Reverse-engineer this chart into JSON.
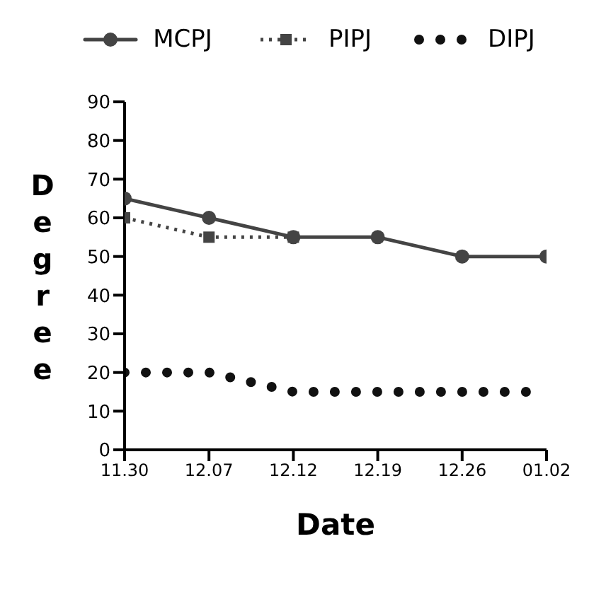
{
  "chart_data": {
    "type": "line",
    "categories": [
      "11.30",
      "12.07",
      "12.12",
      "12.19",
      "12.26",
      "01.02"
    ],
    "series": [
      {
        "name": "MCPJ",
        "color": "#444444",
        "values": [
          65,
          60,
          55,
          55,
          50,
          50
        ],
        "marker": "circle",
        "line_style": "solid"
      },
      {
        "name": "PIPJ",
        "color": "#444444",
        "values": [
          60,
          55,
          55,
          null,
          null,
          null
        ],
        "marker": "square",
        "line_style": "dotted"
      },
      {
        "name": "DIPJ",
        "color": "#111111",
        "values": [
          20,
          20,
          15,
          15,
          15,
          15
        ],
        "marker": "none",
        "line_style": "dotted"
      }
    ],
    "xlabel": "Date",
    "ylabel": "Degree",
    "ylim": [
      0,
      90
    ],
    "yticks": [
      0,
      10,
      20,
      30,
      40,
      50,
      60,
      70,
      80,
      90
    ],
    "legend": "top"
  }
}
